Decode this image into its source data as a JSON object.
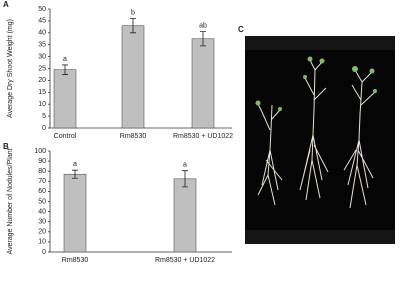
{
  "chart_data": [
    {
      "type": "bar",
      "panel": "A",
      "y_label": "Average Dry Shoot Weight (mg)",
      "categories": [
        "Control",
        "Rm8530",
        "Rm8530 + UD1022"
      ],
      "values": [
        24.5,
        43,
        37.5
      ],
      "errors": [
        2,
        3,
        3
      ],
      "value_labels": [
        "a",
        "b",
        "ab"
      ],
      "color": "#bfbfbf",
      "ylim": [
        0,
        50
      ],
      "yticks": [
        0,
        5,
        10,
        15,
        20,
        25,
        30,
        35,
        40,
        45,
        50
      ]
    },
    {
      "type": "bar",
      "panel": "B",
      "y_label": "Average Number of Nodules/Plant",
      "categories": [
        "Rm8530",
        "Rm8530 + UD1022"
      ],
      "values": [
        77,
        72.5
      ],
      "errors": [
        4,
        8
      ],
      "value_labels": [
        "a",
        "a"
      ],
      "color": "#bfbfbf",
      "ylim": [
        0,
        100
      ],
      "yticks": [
        0,
        10,
        20,
        30,
        40,
        50,
        60,
        70,
        80,
        90,
        100
      ]
    }
  ],
  "photo": {
    "panel": "C"
  }
}
